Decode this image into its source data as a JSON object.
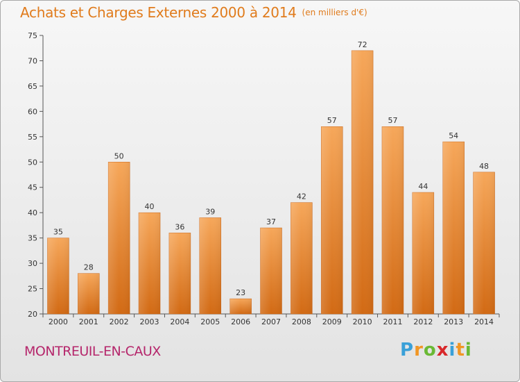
{
  "header": {
    "title": "Achats et Charges Externes 2000 à 2014",
    "unit": "(en milliers d'€)"
  },
  "commune": "MONTREUIL-EN-CAUX",
  "brand": {
    "letters": [
      "P",
      "r",
      "o",
      "x",
      "i",
      "t",
      "i"
    ],
    "colors": [
      "#3aa0d8",
      "#f19624",
      "#6ab935",
      "#d8282b",
      "#3aa0d8",
      "#f19624",
      "#6ab935"
    ]
  },
  "chart_data": {
    "type": "bar",
    "categories": [
      "2000",
      "2001",
      "2002",
      "2003",
      "2004",
      "2005",
      "2006",
      "2007",
      "2008",
      "2009",
      "2010",
      "2011",
      "2012",
      "2013",
      "2014"
    ],
    "values": [
      35,
      28,
      50,
      40,
      36,
      39,
      23,
      37,
      42,
      57,
      72,
      57,
      44,
      54,
      48
    ],
    "ylim": [
      20,
      75
    ],
    "yticks": [
      20,
      25,
      30,
      35,
      40,
      45,
      50,
      55,
      60,
      65,
      70,
      75
    ],
    "grid": false,
    "bar_color": "#f19a3e"
  }
}
